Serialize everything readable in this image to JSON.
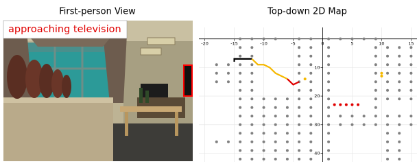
{
  "first_person_view": {
    "title": "First-person View",
    "caption": "approaching television"
  },
  "chart_data": {
    "type": "scatter",
    "title": "Top-down 2D Map",
    "xlim": [
      -21,
      16
    ],
    "ylim": [
      -4,
      43
    ],
    "y_inverted": true,
    "grid": true,
    "xticks": [
      -20,
      -15,
      -10,
      -5,
      0,
      5,
      10,
      15
    ],
    "yticks": [
      10,
      20,
      30,
      40
    ],
    "series": [
      {
        "color": "#808080",
        "mode": "points",
        "x": [
          -18,
          -16,
          -18,
          -16,
          -18,
          -16,
          -18,
          -16,
          -14,
          -12,
          -14,
          -12,
          -14,
          -12,
          -14,
          -12,
          -14,
          -12,
          -14,
          -12,
          -14,
          -12,
          -14,
          -12,
          -14,
          -12,
          -14,
          -12,
          -14,
          -12,
          -14,
          -12,
          -14,
          -12,
          -14,
          -12,
          -14,
          -12,
          -10,
          -8,
          -6,
          -10,
          -8,
          -6,
          -10,
          -8,
          -6,
          -10,
          -8,
          -6,
          -10,
          -8,
          -6,
          -10,
          -8,
          -6,
          -10,
          -8,
          -6,
          -10,
          -8,
          -6,
          -4,
          -2,
          -4,
          -2,
          -4,
          -2,
          -4,
          -2,
          -4,
          -2,
          -4,
          -2,
          -4,
          -2,
          -4,
          -2,
          -4,
          -2,
          -4,
          -2,
          -4,
          -2,
          -4,
          -2,
          -4,
          -2,
          -4,
          -2,
          -4,
          -2,
          -10,
          -8,
          1,
          1,
          1,
          1,
          1,
          1,
          1,
          1,
          1,
          1,
          1,
          1,
          1,
          1,
          1,
          3,
          5,
          7,
          9,
          3,
          5,
          7,
          9,
          11,
          13,
          15,
          3,
          5,
          7,
          9,
          11,
          13,
          15,
          9,
          9,
          9,
          9,
          9,
          9,
          9,
          9,
          11,
          13,
          15,
          11,
          13,
          15,
          11,
          13,
          15,
          11,
          13,
          15,
          11,
          13,
          15,
          11,
          13,
          15,
          11,
          13,
          15,
          11,
          13,
          11,
          13,
          11,
          13,
          11,
          13
        ],
        "values": [
          9,
          9,
          12,
          12,
          15,
          15,
          36,
          36,
          0,
          0,
          3,
          3,
          6,
          6,
          9,
          9,
          12,
          12,
          15,
          15,
          18,
          18,
          21,
          21,
          24,
          24,
          27,
          27,
          30,
          30,
          33,
          33,
          36,
          36,
          39,
          39,
          42,
          42,
          21,
          21,
          21,
          24,
          24,
          24,
          27,
          27,
          27,
          30,
          30,
          30,
          33,
          33,
          33,
          36,
          36,
          36,
          39,
          39,
          39,
          42,
          42,
          42,
          0,
          0,
          3,
          3,
          6,
          6,
          9,
          9,
          12,
          12,
          15,
          15,
          18,
          18,
          21,
          21,
          24,
          24,
          27,
          27,
          30,
          30,
          33,
          33,
          36,
          36,
          39,
          39,
          42,
          42,
          0,
          0,
          0,
          3,
          6,
          9,
          12,
          15,
          18,
          21,
          24,
          27,
          30,
          33,
          36,
          39,
          42,
          0,
          0,
          0,
          0,
          27,
          27,
          27,
          27,
          27,
          27,
          27,
          30,
          30,
          30,
          30,
          30,
          30,
          30,
          3,
          6,
          9,
          12,
          15,
          18,
          21,
          24,
          3,
          3,
          3,
          6,
          6,
          6,
          9,
          9,
          9,
          12,
          12,
          12,
          15,
          15,
          15,
          18,
          18,
          18,
          21,
          21,
          21,
          33,
          33,
          36,
          36,
          39,
          39,
          42,
          42
        ]
      },
      {
        "color": "#000000",
        "mode": "line",
        "x": [
          -15,
          -15,
          -14,
          -13,
          -12
        ],
        "values": [
          8,
          7,
          7,
          7,
          7
        ]
      },
      {
        "color": "#f5b800",
        "mode": "line",
        "x": [
          -12,
          -11.5,
          -11,
          -10,
          -9,
          -8,
          -7,
          -6
        ],
        "values": [
          7,
          8,
          9,
          9,
          10,
          12,
          13,
          14
        ]
      },
      {
        "color": "#f5b800",
        "mode": "points",
        "x": [
          -3,
          10,
          10
        ],
        "values": [
          14,
          12,
          13
        ]
      },
      {
        "color": "#e00000",
        "mode": "line",
        "x": [
          -6,
          -5,
          -4
        ],
        "values": [
          14,
          16,
          15
        ]
      },
      {
        "color": "#e00000",
        "mode": "points",
        "x": [
          2,
          3,
          4,
          5,
          6
        ],
        "values": [
          23,
          23,
          23,
          23,
          23
        ]
      }
    ]
  }
}
